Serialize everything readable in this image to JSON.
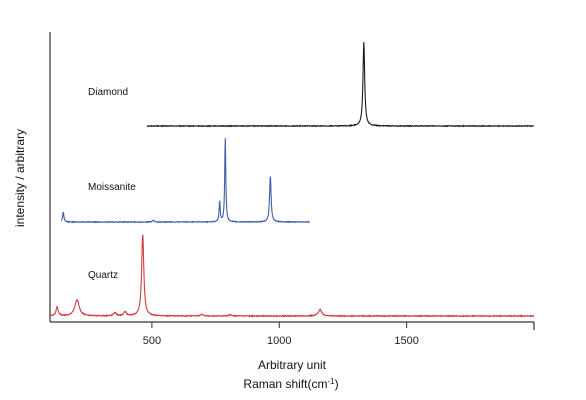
{
  "chart_data": {
    "type": "line",
    "xlabel": "Arbitrary unit",
    "xlabel_secondary_main": "Raman shift(cm",
    "xlabel_secondary_sup": "-1",
    "xlabel_secondary_tail": ")",
    "ylabel": "intensity / arbitrary",
    "xlim": [
      100,
      2000
    ],
    "x_ticks": [
      500,
      1000,
      1500
    ],
    "x_tick_labels": [
      "500",
      "1000",
      "1500"
    ],
    "y_ticks_visible": false,
    "grid": false,
    "legend": "inline labels",
    "series": [
      {
        "name": "Diamond",
        "color": "#1a1a1a",
        "x_range": [
          480,
          2000
        ],
        "peaks": [
          {
            "x": 1332,
            "height": 1.0,
            "width": 4
          }
        ],
        "noise_level": 0.004
      },
      {
        "name": "Moissanite",
        "color": "#3d5fa8",
        "x_range": [
          145,
          1120
        ],
        "peaks": [
          {
            "x": 152,
            "height": 0.12,
            "width": 3
          },
          {
            "x": 505,
            "height": 0.02,
            "width": 4
          },
          {
            "x": 766,
            "height": 0.25,
            "width": 2.5
          },
          {
            "x": 788,
            "height": 1.0,
            "width": 2.5
          },
          {
            "x": 965,
            "height": 0.55,
            "width": 3.5
          }
        ],
        "noise_level": 0.004
      },
      {
        "name": "Quartz",
        "color": "#d43c3c",
        "x_range": [
          100,
          2000
        ],
        "peaks": [
          {
            "x": 128,
            "height": 0.11,
            "width": 5
          },
          {
            "x": 206,
            "height": 0.2,
            "width": 10
          },
          {
            "x": 355,
            "height": 0.04,
            "width": 6
          },
          {
            "x": 395,
            "height": 0.05,
            "width": 6
          },
          {
            "x": 464,
            "height": 1.0,
            "width": 5
          },
          {
            "x": 696,
            "height": 0.02,
            "width": 6
          },
          {
            "x": 808,
            "height": 0.015,
            "width": 6
          },
          {
            "x": 1160,
            "height": 0.08,
            "width": 8
          }
        ],
        "noise_level": 0.005
      }
    ]
  }
}
